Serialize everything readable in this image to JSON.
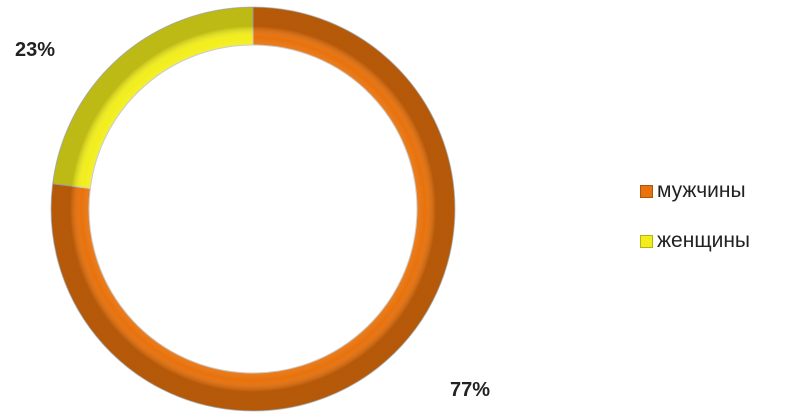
{
  "chart_data": {
    "type": "pie",
    "variant": "doughnut",
    "start_angle_deg": 0,
    "direction": "clockwise",
    "categories": [
      "мужчины",
      "женщины"
    ],
    "values": [
      77,
      23
    ],
    "data_labels": [
      "77%",
      "23%"
    ],
    "colors": [
      "#e8720c",
      "#f2ee1c"
    ],
    "legend": {
      "position": "right",
      "items": [
        {
          "label": "мужчины",
          "color": "#e8720c"
        },
        {
          "label": "женщины",
          "color": "#f2ee1c"
        }
      ]
    }
  }
}
